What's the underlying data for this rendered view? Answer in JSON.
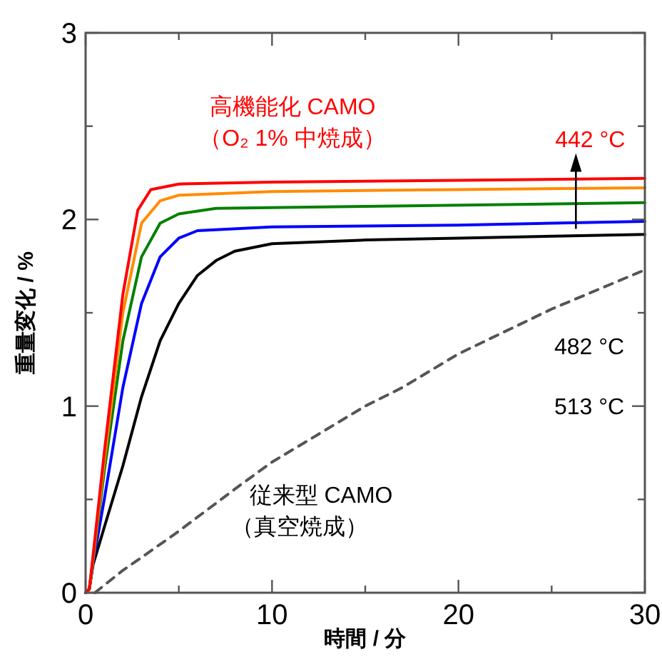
{
  "chart_data": {
    "type": "line",
    "xlabel": "時間 / 分",
    "ylabel": "重量変化 / %",
    "xlim": [
      0,
      30
    ],
    "ylim": [
      0,
      3
    ],
    "xticks": [
      0,
      {
        "value": 5,
        "label": null
      },
      10,
      {
        "value": 15,
        "label": null
      },
      20,
      {
        "value": 25,
        "label": null
      },
      30
    ],
    "yticks": [
      0,
      {
        "value": 0.5,
        "label": null
      },
      1,
      {
        "value": 1.5,
        "label": null
      },
      2,
      {
        "value": 2.5,
        "label": null
      },
      3
    ],
    "annotations": [
      "高機能化 CAMO",
      "（O₂ 1% 中焼成）",
      "従来型 CAMO",
      "（真空焼成）",
      {
        "text": "442 °C",
        "x": 26.3,
        "y": 2.21
      },
      "482 °C",
      "513 °C"
    ],
    "series": [
      {
        "color": "#ff0000",
        "x": [
          0,
          0.2,
          0.4,
          1,
          2,
          2.8,
          3.5,
          5,
          10,
          20,
          30
        ],
        "values": [
          0,
          0.02,
          0.2,
          0.75,
          1.6,
          2.05,
          2.16,
          2.19,
          2.2,
          2.21,
          2.22
        ]
      },
      {
        "color": "#ff8c00",
        "x": [
          0,
          0.2,
          0.4,
          1,
          2,
          3,
          4,
          5,
          10,
          20,
          30
        ],
        "values": [
          0,
          0.02,
          0.18,
          0.7,
          1.5,
          1.98,
          2.1,
          2.13,
          2.15,
          2.16,
          2.17
        ]
      },
      {
        "color": "#008000",
        "x": [
          0,
          0.2,
          0.4,
          1,
          2,
          3,
          4,
          5,
          7,
          15,
          30
        ],
        "values": [
          0,
          0.02,
          0.17,
          0.65,
          1.35,
          1.8,
          1.98,
          2.03,
          2.06,
          2.07,
          2.09
        ]
      },
      {
        "color": "#0000ff",
        "x": [
          0,
          0.2,
          0.4,
          1,
          2,
          3,
          4,
          5,
          6,
          10,
          20,
          30
        ],
        "values": [
          0,
          0.02,
          0.16,
          0.5,
          1.1,
          1.55,
          1.8,
          1.9,
          1.94,
          1.96,
          1.97,
          1.99
        ]
      },
      {
        "color": "#000000",
        "x": [
          0,
          0.2,
          0.4,
          1,
          2,
          3,
          4,
          5,
          6,
          7,
          8,
          10,
          15,
          20,
          30
        ],
        "values": [
          0,
          0.02,
          0.15,
          0.35,
          0.68,
          1.05,
          1.35,
          1.55,
          1.7,
          1.78,
          1.83,
          1.87,
          1.89,
          1.9,
          1.92
        ]
      },
      {
        "color": "#555555",
        "line_style": "dashed",
        "x": [
          0.5,
          1,
          2,
          3.3,
          5,
          8.2,
          10,
          13,
          15,
          17,
          20,
          25,
          30
        ],
        "values": [
          0,
          0.04,
          0.12,
          0.21,
          0.33,
          0.57,
          0.7,
          0.88,
          1.0,
          1.1,
          1.28,
          1.52,
          1.73
        ]
      }
    ]
  }
}
